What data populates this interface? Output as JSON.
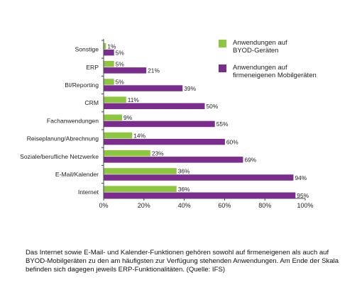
{
  "chart_data": {
    "type": "bar",
    "orientation": "horizontal",
    "categories": [
      "Sonstige",
      "ERP",
      "BI/Reporting",
      "CRM",
      "Fachanwendungen",
      "Reiseplanung/Abrechnung",
      "Soziale/berufliche Netzwerke",
      "E-Mail/Kalender",
      "Internet"
    ],
    "series": [
      {
        "name": "Anwendungen auf BYOD-Geräten",
        "color": "#8dc63f",
        "values": [
          1,
          5,
          5,
          11,
          9,
          14,
          23,
          36,
          36
        ]
      },
      {
        "name": "Anwendungen auf firmeneigenen Mobilgeräten",
        "color": "#7b2d8e",
        "values": [
          5,
          21,
          39,
          50,
          55,
          60,
          69,
          94,
          95
        ]
      }
    ],
    "value_suffix": "%",
    "xlim": [
      0,
      100
    ],
    "xticks": [
      "0%",
      "20%",
      "40%",
      "60%",
      "80%",
      "100%"
    ],
    "grid": false,
    "legend_position": "top-right"
  },
  "legend": {
    "byod_line1": "Anwendungen auf",
    "byod_line2": "BYOD-Geräten",
    "firm_line1": "Anwendungen auf",
    "firm_line2": "firmeneigenen Mobilgeräten"
  },
  "caption": "Das Internet sowie E-Mail- und Kalender-Funktionen gehören sowohl auf firmeneigenen als auch auf BYOD-Mobilgeräten zu den am häufigsten zur Verfügung stehenden Anwendungen. Am Ende der Skala befinden sich dagegen jeweils ERP-Funktionalitäten. (Quelle: IFS)"
}
